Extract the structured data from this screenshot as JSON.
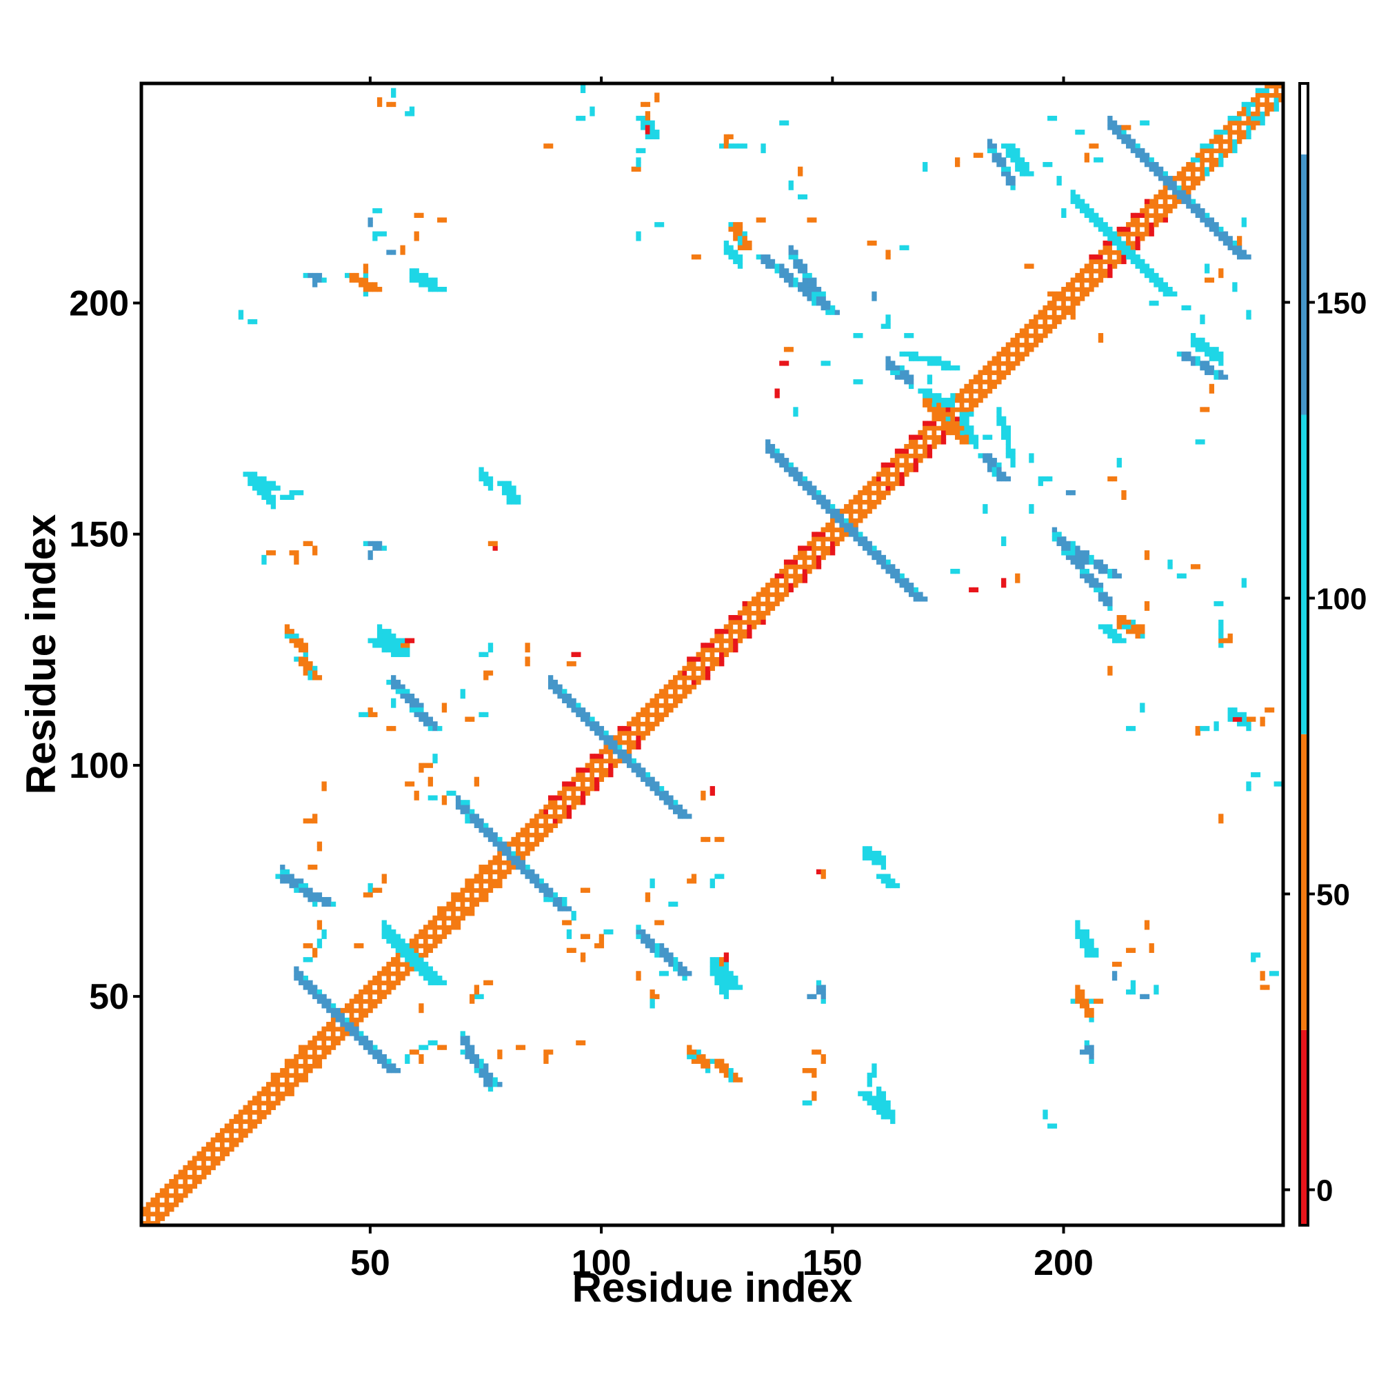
{
  "chart_data": {
    "type": "heatmap",
    "title": "",
    "xlabel": "Residue index",
    "ylabel": "Residue index",
    "xlim": [
      1,
      247
    ],
    "ylim": [
      1,
      247
    ],
    "xticks": [
      50,
      100,
      150,
      200
    ],
    "yticks": [
      50,
      100,
      150,
      200
    ],
    "grid": false,
    "colorbar": {
      "ticks": [
        0,
        50,
        100,
        150
      ],
      "range": [
        -6,
        187
      ],
      "bands": [
        {
          "from": -6,
          "to": 27,
          "color": "#e8151b"
        },
        {
          "from": 27,
          "to": 77,
          "color": "#f47a12"
        },
        {
          "from": 77,
          "to": 131,
          "color": "#1ed6e6"
        },
        {
          "from": 131,
          "to": 175,
          "color": "#4596c9"
        },
        {
          "from": 175,
          "to": 187,
          "color": "#ffffff"
        }
      ]
    },
    "contacts": {
      "diagonal": {
        "from": 1,
        "to": 247,
        "width": 5,
        "center_color": "#ffffff",
        "edge_color": "#f47a12"
      },
      "helix_blocks": [
        {
          "from": 27,
          "to": 35,
          "color": "#f47a12"
        },
        {
          "from": 63,
          "to": 76,
          "color": "#f47a12"
        },
        {
          "from": 88,
          "to": 106,
          "color": "#e8151b"
        },
        {
          "from": 118,
          "to": 131,
          "color": "#e8151b"
        },
        {
          "from": 138,
          "to": 148,
          "color": "#e8151b"
        },
        {
          "from": 160,
          "to": 175,
          "color": "#e8151b"
        },
        {
          "from": 206,
          "to": 218,
          "color": "#e8151b"
        },
        {
          "from": 228,
          "to": 247,
          "color": "#1ed6e6"
        }
      ],
      "antiparallel": [
        {
          "cx": 44,
          "cy": 44,
          "half": 10,
          "width": 3,
          "color": "#4596c9"
        },
        {
          "cx": 58,
          "cy": 58,
          "half": 5,
          "width": 4,
          "color": "#1ed6e6"
        },
        {
          "cx": 80,
          "cy": 80,
          "half": 11,
          "width": 3,
          "color": "#4596c9"
        },
        {
          "cx": 103,
          "cy": 103,
          "half": 14,
          "width": 3,
          "color": "#4596c9"
        },
        {
          "cx": 152,
          "cy": 152,
          "half": 16,
          "width": 3,
          "color": "#4596c9"
        },
        {
          "cx": 174,
          "cy": 174,
          "half": 4,
          "width": 4,
          "color": "#f47a12"
        },
        {
          "cx": 212,
          "cy": 212,
          "half": 10,
          "width": 3,
          "color": "#1ed6e6"
        },
        {
          "cx": 224,
          "cy": 224,
          "half": 14,
          "width": 3,
          "color": "#4596c9"
        }
      ],
      "strips": [
        {
          "x1": 30,
          "y1": 76,
          "x2": 40,
          "y2": 70,
          "color": "#4596c9"
        },
        {
          "x1": 70,
          "y1": 38,
          "x2": 76,
          "y2": 31,
          "color": "#4596c9"
        },
        {
          "x1": 54,
          "y1": 118,
          "x2": 63,
          "y2": 108,
          "color": "#4596c9"
        },
        {
          "x1": 108,
          "y1": 63,
          "x2": 117,
          "y2": 55,
          "color": "#4596c9"
        },
        {
          "x1": 134,
          "y1": 210,
          "x2": 149,
          "y2": 198,
          "color": "#4596c9"
        },
        {
          "x1": 165,
          "y1": 189,
          "x2": 175,
          "y2": 186,
          "color": "#1ed6e6"
        },
        {
          "x1": 198,
          "y1": 149,
          "x2": 210,
          "y2": 141,
          "color": "#4596c9"
        },
        {
          "x1": 187,
          "y1": 234,
          "x2": 191,
          "y2": 228,
          "color": "#1ed6e6"
        },
        {
          "x1": 225,
          "y1": 189,
          "x2": 233,
          "y2": 184,
          "color": "#4596c9"
        },
        {
          "x1": 23,
          "y1": 163,
          "x2": 28,
          "y2": 160,
          "color": "#1ed6e6"
        },
        {
          "x1": 34,
          "y1": 123,
          "x2": 37,
          "y2": 119,
          "color": "#f47a12"
        },
        {
          "x1": 45,
          "y1": 206,
          "x2": 50,
          "y2": 203,
          "color": "#f47a12"
        },
        {
          "x1": 59,
          "y1": 205,
          "x2": 64,
          "y2": 203,
          "color": "#1ed6e6"
        },
        {
          "x1": 182,
          "y1": 167,
          "x2": 186,
          "y2": 162,
          "color": "#4596c9"
        },
        {
          "x1": 156,
          "y1": 29,
          "x2": 161,
          "y2": 24,
          "color": "#1ed6e6"
        },
        {
          "x1": 203,
          "y1": 64,
          "x2": 205,
          "y2": 59,
          "color": "#1ed6e6"
        },
        {
          "x1": 202,
          "y1": 49,
          "x2": 206,
          "y2": 49,
          "color": "#f47a12"
        },
        {
          "x1": 124,
          "y1": 36,
          "x2": 128,
          "y2": 32,
          "color": "#f47a12"
        },
        {
          "x1": 124,
          "y1": 58,
          "x2": 128,
          "y2": 52,
          "color": "#1ed6e6"
        },
        {
          "x1": 208,
          "y1": 130,
          "x2": 211,
          "y2": 127,
          "color": "#1ed6e6"
        },
        {
          "x1": 50,
          "y1": 127,
          "x2": 55,
          "y2": 124,
          "color": "#1ed6e6"
        },
        {
          "x1": 78,
          "y1": 161,
          "x2": 80,
          "y2": 157,
          "color": "#1ed6e6"
        },
        {
          "x1": 108,
          "y1": 240,
          "x2": 110,
          "y2": 236,
          "color": "#1ed6e6"
        },
        {
          "x1": 126,
          "y1": 234,
          "x2": 129,
          "y2": 234,
          "color": "#1ed6e6"
        },
        {
          "x1": 128,
          "y1": 217,
          "x2": 130,
          "y2": 212,
          "color": "#f47a12"
        },
        {
          "x1": 169,
          "y1": 181,
          "x2": 174,
          "y2": 178,
          "color": "#1ed6e6"
        },
        {
          "x1": 160,
          "y1": 76,
          "x2": 162,
          "y2": 74,
          "color": "#1ed6e6"
        },
        {
          "x1": 36,
          "y1": 206,
          "x2": 38,
          "y2": 205,
          "color": "#4596c9"
        },
        {
          "x1": 49,
          "y1": 148,
          "x2": 51,
          "y2": 147,
          "color": "#4596c9"
        }
      ],
      "scatter": [
        [
          54,
          243,
          "#f47a12"
        ],
        [
          58,
          241,
          "#1ed6e6"
        ],
        [
          95,
          240,
          "#1ed6e6"
        ],
        [
          109,
          243,
          "#f47a12"
        ],
        [
          107,
          229,
          "#f47a12"
        ],
        [
          108,
          233,
          "#1ed6e6"
        ],
        [
          127,
          236,
          "#f47a12"
        ],
        [
          139,
          239,
          "#1ed6e6"
        ],
        [
          88,
          234,
          "#f47a12"
        ],
        [
          112,
          217,
          "#1ed6e6"
        ],
        [
          134,
          218,
          "#f47a12"
        ],
        [
          145,
          218,
          "#f47a12"
        ],
        [
          143,
          223,
          "#1ed6e6"
        ],
        [
          158,
          213,
          "#f47a12"
        ],
        [
          165,
          212,
          "#1ed6e6"
        ],
        [
          120,
          210,
          "#f47a12"
        ],
        [
          60,
          219,
          "#f47a12"
        ],
        [
          65,
          218,
          "#f47a12"
        ],
        [
          54,
          211,
          "#4596c9"
        ],
        [
          24,
          196,
          "#1ed6e6"
        ],
        [
          161,
          195,
          "#1ed6e6"
        ],
        [
          166,
          193,
          "#1ed6e6"
        ],
        [
          155,
          193,
          "#1ed6e6"
        ],
        [
          139,
          187,
          "#e8151b"
        ],
        [
          140,
          190,
          "#f47a12"
        ],
        [
          148,
          187,
          "#1ed6e6"
        ],
        [
          155,
          183,
          "#1ed6e6"
        ],
        [
          172,
          188,
          "#1ed6e6"
        ],
        [
          179,
          176,
          "#1ed6e6"
        ],
        [
          183,
          171,
          "#1ed6e6"
        ],
        [
          188,
          168,
          "#1ed6e6"
        ],
        [
          196,
          162,
          "#1ed6e6"
        ],
        [
          201,
          159,
          "#4596c9"
        ],
        [
          210,
          162,
          "#f47a12"
        ],
        [
          230,
          177,
          "#f47a12"
        ],
        [
          229,
          170,
          "#1ed6e6"
        ],
        [
          225,
          141,
          "#1ed6e6"
        ],
        [
          228,
          143,
          "#f47a12"
        ],
        [
          233,
          135,
          "#1ed6e6"
        ],
        [
          234,
          127,
          "#f47a12"
        ],
        [
          176,
          142,
          "#1ed6e6"
        ],
        [
          180,
          138,
          "#e8151b"
        ],
        [
          192,
          208,
          "#f47a12"
        ],
        [
          197,
          202,
          "#f47a12"
        ],
        [
          197,
          240,
          "#1ed6e6"
        ],
        [
          206,
          234,
          "#f47a12"
        ],
        [
          217,
          239,
          "#1ed6e6"
        ],
        [
          241,
          240,
          "#1ed6e6"
        ],
        [
          219,
          200,
          "#1ed6e6"
        ],
        [
          226,
          199,
          "#1ed6e6"
        ],
        [
          231,
          205,
          "#f47a12"
        ],
        [
          196,
          230,
          "#1ed6e6"
        ],
        [
          181,
          232,
          "#f47a12"
        ],
        [
          203,
          237,
          "#1ed6e6"
        ],
        [
          207,
          231,
          "#1ed6e6"
        ],
        [
          213,
          238,
          "#f47a12"
        ],
        [
          237,
          110,
          "#e8151b"
        ],
        [
          240,
          110,
          "#f47a12"
        ],
        [
          244,
          112,
          "#f47a12"
        ],
        [
          230,
          108,
          "#1ed6e6"
        ],
        [
          214,
          108,
          "#1ed6e6"
        ],
        [
          241,
          98,
          "#1ed6e6"
        ],
        [
          246,
          96,
          "#1ed6e6"
        ],
        [
          241,
          59,
          "#1ed6e6"
        ],
        [
          245,
          55,
          "#1ed6e6"
        ],
        [
          243,
          52,
          "#f47a12"
        ],
        [
          214,
          60,
          "#f47a12"
        ],
        [
          211,
          57,
          "#f47a12"
        ],
        [
          214,
          51,
          "#1ed6e6"
        ],
        [
          217,
          50,
          "#4596c9"
        ],
        [
          197,
          22,
          "#1ed6e6"
        ],
        [
          204,
          38,
          "#4596c9"
        ],
        [
          147,
          77,
          "#e8151b"
        ],
        [
          146,
          38,
          "#f47a12"
        ],
        [
          144,
          34,
          "#f47a12"
        ],
        [
          144,
          27,
          "#1ed6e6"
        ],
        [
          145,
          50,
          "#4596c9"
        ],
        [
          158,
          33,
          "#1ed6e6"
        ],
        [
          95,
          40,
          "#f47a12"
        ],
        [
          88,
          38,
          "#f47a12"
        ],
        [
          82,
          39,
          "#f47a12"
        ],
        [
          65,
          39,
          "#f47a12"
        ],
        [
          63,
          40,
          "#1ed6e6"
        ],
        [
          75,
          53,
          "#f47a12"
        ],
        [
          73,
          50,
          "#1ed6e6"
        ],
        [
          93,
          60,
          "#f47a12"
        ],
        [
          96,
          63,
          "#f47a12"
        ],
        [
          99,
          61,
          "#f47a12"
        ],
        [
          101,
          64,
          "#1ed6e6"
        ],
        [
          112,
          66,
          "#f47a12"
        ],
        [
          115,
          70,
          "#1ed6e6"
        ],
        [
          111,
          50,
          "#f47a12"
        ],
        [
          113,
          55,
          "#1ed6e6"
        ],
        [
          119,
          75,
          "#f47a12"
        ],
        [
          125,
          76,
          "#1ed6e6"
        ],
        [
          122,
          84,
          "#f47a12"
        ],
        [
          125,
          84,
          "#f47a12"
        ],
        [
          96,
          73,
          "#f47a12"
        ],
        [
          88,
          71,
          "#1ed6e6"
        ],
        [
          92,
          66,
          "#f47a12"
        ],
        [
          36,
          88,
          "#f47a12"
        ],
        [
          37,
          78,
          "#f47a12"
        ],
        [
          36,
          61,
          "#f47a12"
        ],
        [
          36,
          58,
          "#1ed6e6"
        ],
        [
          49,
          72,
          "#f47a12"
        ],
        [
          51,
          73,
          "#f47a12"
        ],
        [
          47,
          61,
          "#f47a12"
        ],
        [
          59,
          38,
          "#f47a12"
        ],
        [
          61,
          39,
          "#1ed6e6"
        ],
        [
          58,
          96,
          "#f47a12"
        ],
        [
          62,
          100,
          "#f47a12"
        ],
        [
          63,
          93,
          "#1ed6e6"
        ],
        [
          67,
          94,
          "#1ed6e6"
        ],
        [
          70,
          92,
          "#1ed6e6"
        ],
        [
          71,
          110,
          "#f47a12"
        ],
        [
          74,
          111,
          "#1ed6e6"
        ],
        [
          74,
          124,
          "#1ed6e6"
        ],
        [
          75,
          120,
          "#f47a12"
        ],
        [
          54,
          108,
          "#f47a12"
        ],
        [
          50,
          111,
          "#f47a12"
        ],
        [
          48,
          111,
          "#1ed6e6"
        ],
        [
          58,
          127,
          "#e8151b"
        ],
        [
          57,
          126,
          "#f47a12"
        ],
        [
          28,
          146,
          "#f47a12"
        ],
        [
          36,
          148,
          "#f47a12"
        ],
        [
          33,
          146,
          "#f47a12"
        ],
        [
          76,
          148,
          "#f47a12"
        ],
        [
          31,
          158,
          "#1ed6e6"
        ],
        [
          34,
          159,
          "#1ed6e6"
        ],
        [
          51,
          220,
          "#1ed6e6"
        ],
        [
          52,
          215,
          "#1ed6e6"
        ],
        [
          93,
          122,
          "#f47a12"
        ],
        [
          94,
          124,
          "#e8151b"
        ]
      ]
    }
  }
}
